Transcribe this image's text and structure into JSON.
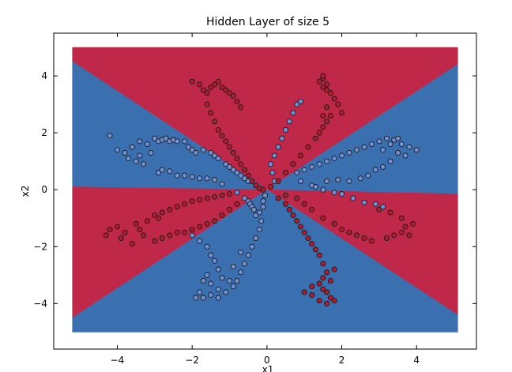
{
  "chart_data": {
    "type": "scatter",
    "title": "Hidden Layer of size 5",
    "xlabel": "x1",
    "ylabel": "x2",
    "xlim": [
      -5.7,
      5.6
    ],
    "ylim": [
      -5.6,
      5.5
    ],
    "xticks": [
      -4,
      -2,
      0,
      2,
      4
    ],
    "xtick_labels": [
      "−4",
      "−2",
      "0",
      "2",
      "4"
    ],
    "yticks": [
      -4,
      -2,
      0,
      2,
      4
    ],
    "ytick_labels": [
      "−4",
      "−2",
      "0",
      "2",
      "4"
    ],
    "grid": false,
    "legend": "none",
    "background_extent": {
      "x": [
        -5.2,
        5.1
      ],
      "y": [
        -5.0,
        5.0
      ]
    },
    "decision_regions": [
      {
        "class": 1,
        "color": "#C0284A",
        "polygon": [
          [
            -5.2,
            5.0
          ],
          [
            5.1,
            5.0
          ],
          [
            5.1,
            4.4
          ],
          [
            0,
            0
          ],
          [
            -5.2,
            4.5
          ]
        ]
      },
      {
        "class": 0,
        "color": "#3A70B0",
        "polygon": [
          [
            -5.2,
            4.5
          ],
          [
            0,
            0
          ],
          [
            -5.2,
            0.1
          ]
        ]
      },
      {
        "class": 0,
        "color": "#3A70B0",
        "polygon": [
          [
            5.1,
            4.4
          ],
          [
            5.1,
            -0.15
          ],
          [
            0,
            0
          ]
        ]
      },
      {
        "class": 1,
        "color": "#C0284A",
        "polygon": [
          [
            -5.2,
            0.1
          ],
          [
            0,
            0
          ],
          [
            -5.2,
            -4.5
          ]
        ]
      },
      {
        "class": 1,
        "color": "#C0284A",
        "polygon": [
          [
            0,
            0
          ],
          [
            5.1,
            -0.15
          ],
          [
            5.1,
            -4.4
          ]
        ]
      },
      {
        "class": 0,
        "color": "#3A70B0",
        "polygon": [
          [
            -5.2,
            -4.5
          ],
          [
            0,
            0
          ],
          [
            5.1,
            -4.4
          ],
          [
            5.1,
            -5.0
          ],
          [
            -5.2,
            -5.0
          ]
        ]
      }
    ],
    "series": [
      {
        "class": 0,
        "color": "#6F8FD6",
        "points": [
          [
            -4.2,
            1.9
          ],
          [
            -4.0,
            1.4
          ],
          [
            -3.8,
            1.3
          ],
          [
            -3.7,
            1.1
          ],
          [
            -3.6,
            1.5
          ],
          [
            -3.5,
            1.0
          ],
          [
            -3.4,
            1.7
          ],
          [
            -3.4,
            1.2
          ],
          [
            -3.3,
            0.9
          ],
          [
            -3.2,
            1.6
          ],
          [
            -3.1,
            1.3
          ],
          [
            -3.0,
            1.8
          ],
          [
            -2.9,
            1.7
          ],
          [
            -2.8,
            1.75
          ],
          [
            -2.7,
            1.8
          ],
          [
            -2.6,
            1.7
          ],
          [
            -2.5,
            1.75
          ],
          [
            -2.4,
            1.7
          ],
          [
            -2.2,
            1.7
          ],
          [
            -2.1,
            1.5
          ],
          [
            -2.0,
            1.4
          ],
          [
            -1.9,
            1.3
          ],
          [
            -1.7,
            1.4
          ],
          [
            -1.5,
            1.3
          ],
          [
            -1.4,
            1.2
          ],
          [
            -1.3,
            1.1
          ],
          [
            -1.1,
            0.9
          ],
          [
            -1.0,
            0.8
          ],
          [
            -0.9,
            0.7
          ],
          [
            -0.8,
            0.6
          ],
          [
            -0.7,
            0.5
          ],
          [
            -0.6,
            0.4
          ],
          [
            -0.5,
            0.3
          ],
          [
            -2.9,
            0.6
          ],
          [
            -2.8,
            0.7
          ],
          [
            -2.6,
            0.65
          ],
          [
            -2.4,
            0.5
          ],
          [
            -2.2,
            0.5
          ],
          [
            -2.0,
            0.45
          ],
          [
            -1.8,
            0.4
          ],
          [
            -1.6,
            0.4
          ],
          [
            -1.4,
            0.35
          ],
          [
            -1.2,
            0.2
          ],
          [
            -0.8,
            -0.1
          ],
          [
            -0.6,
            -0.3
          ],
          [
            -0.5,
            -0.4
          ],
          [
            -0.45,
            -0.5
          ],
          [
            -0.4,
            -0.6
          ],
          [
            -0.35,
            -0.7
          ],
          [
            -0.3,
            -0.9
          ],
          [
            -0.2,
            -0.8
          ],
          [
            -0.1,
            -0.6
          ],
          [
            -0.1,
            -0.4
          ],
          [
            -0.05,
            -0.2
          ],
          [
            -2.0,
            -1.6
          ],
          [
            -1.8,
            -1.8
          ],
          [
            -1.6,
            -2.0
          ],
          [
            -1.5,
            -2.3
          ],
          [
            -1.4,
            -2.5
          ],
          [
            -1.3,
            -2.8
          ],
          [
            -1.2,
            -3.1
          ],
          [
            -1.3,
            -3.5
          ],
          [
            -1.5,
            -3.3
          ],
          [
            -1.6,
            -3.0
          ],
          [
            -1.7,
            -3.2
          ],
          [
            -1.8,
            -3.6
          ],
          [
            -1.9,
            -3.8
          ],
          [
            -1.7,
            -3.8
          ],
          [
            -1.5,
            -3.7
          ],
          [
            -1.3,
            -3.8
          ],
          [
            -1.1,
            -3.6
          ],
          [
            -0.9,
            -3.4
          ],
          [
            -0.8,
            -3.2
          ],
          [
            -0.7,
            -2.9
          ],
          [
            -0.6,
            -2.6
          ],
          [
            -0.5,
            -2.3
          ],
          [
            -0.4,
            -2.0
          ],
          [
            -0.3,
            -1.7
          ],
          [
            -0.2,
            -1.4
          ],
          [
            -0.15,
            -1.1
          ],
          [
            -1.0,
            -3.2
          ],
          [
            -0.9,
            -2.7
          ],
          [
            -0.7,
            -2.2
          ],
          [
            0.2,
            1.2
          ],
          [
            0.3,
            1.5
          ],
          [
            0.4,
            1.8
          ],
          [
            0.5,
            2.1
          ],
          [
            0.6,
            2.4
          ],
          [
            0.7,
            2.7
          ],
          [
            0.8,
            3.0
          ],
          [
            0.9,
            3.1
          ],
          [
            0.1,
            0.9
          ],
          [
            0.15,
            0.6
          ],
          [
            0.2,
            0.3
          ],
          [
            0.9,
            0.3
          ],
          [
            1.2,
            0.15
          ],
          [
            1.5,
            0.0
          ],
          [
            1.8,
            -0.1
          ],
          [
            2.0,
            -0.15
          ],
          [
            2.3,
            -0.3
          ],
          [
            2.6,
            -0.45
          ],
          [
            2.9,
            -0.5
          ],
          [
            3.1,
            -0.6
          ],
          [
            0.8,
            0.6
          ],
          [
            1.0,
            0.7
          ],
          [
            1.2,
            0.8
          ],
          [
            1.4,
            0.9
          ],
          [
            1.6,
            1.0
          ],
          [
            1.8,
            1.1
          ],
          [
            2.0,
            1.2
          ],
          [
            2.2,
            1.3
          ],
          [
            2.4,
            1.4
          ],
          [
            2.6,
            1.5
          ],
          [
            2.8,
            1.6
          ],
          [
            3.0,
            1.7
          ],
          [
            3.2,
            1.8
          ],
          [
            3.4,
            1.75
          ],
          [
            3.6,
            1.6
          ],
          [
            3.8,
            1.5
          ],
          [
            4.0,
            1.4
          ],
          [
            3.5,
            1.8
          ],
          [
            3.3,
            1.6
          ],
          [
            3.1,
            1.4
          ],
          [
            3.3,
            1.0
          ],
          [
            3.1,
            0.8
          ],
          [
            2.9,
            0.7
          ],
          [
            3.5,
            1.3
          ],
          [
            3.7,
            1.2
          ],
          [
            2.7,
            0.5
          ],
          [
            2.5,
            0.4
          ],
          [
            2.2,
            0.3
          ],
          [
            1.9,
            0.35
          ],
          [
            1.6,
            0.3
          ],
          [
            1.3,
            0.1
          ]
        ]
      },
      {
        "class": 1,
        "color": "#B01C2E",
        "points": [
          [
            -2.0,
            3.8
          ],
          [
            -1.8,
            3.7
          ],
          [
            -1.7,
            3.5
          ],
          [
            -1.6,
            3.4
          ],
          [
            -1.5,
            3.6
          ],
          [
            -1.4,
            3.7
          ],
          [
            -1.3,
            3.8
          ],
          [
            -1.2,
            3.6
          ],
          [
            -1.1,
            3.5
          ],
          [
            -1.0,
            3.4
          ],
          [
            -0.9,
            3.3
          ],
          [
            -0.8,
            3.1
          ],
          [
            -0.7,
            2.9
          ],
          [
            -1.6,
            3.0
          ],
          [
            -1.5,
            2.7
          ],
          [
            -1.4,
            2.4
          ],
          [
            -1.3,
            2.1
          ],
          [
            -1.2,
            1.9
          ],
          [
            -1.1,
            1.7
          ],
          [
            -1.0,
            1.5
          ],
          [
            -0.9,
            1.3
          ],
          [
            -0.8,
            1.1
          ],
          [
            -0.7,
            0.9
          ],
          [
            -0.6,
            0.7
          ],
          [
            -0.5,
            0.5
          ],
          [
            -0.4,
            0.3
          ],
          [
            -0.3,
            0.15
          ],
          [
            -0.2,
            0.05
          ],
          [
            -0.1,
            0.0
          ],
          [
            -4.3,
            -1.6
          ],
          [
            -4.2,
            -1.4
          ],
          [
            -4.0,
            -1.3
          ],
          [
            -3.9,
            -1.7
          ],
          [
            -3.8,
            -1.5
          ],
          [
            -3.6,
            -1.9
          ],
          [
            -3.5,
            -1.2
          ],
          [
            -3.4,
            -1.4
          ],
          [
            -3.3,
            -1.6
          ],
          [
            -3.2,
            -1.1
          ],
          [
            -3.0,
            -0.9
          ],
          [
            -2.9,
            -1.0
          ],
          [
            -2.8,
            -0.8
          ],
          [
            -2.6,
            -0.7
          ],
          [
            -2.4,
            -0.6
          ],
          [
            -2.2,
            -0.5
          ],
          [
            -2.0,
            -0.4
          ],
          [
            -1.8,
            -0.35
          ],
          [
            -1.6,
            -0.3
          ],
          [
            -1.4,
            -0.25
          ],
          [
            -1.2,
            -0.2
          ],
          [
            -1.0,
            -0.15
          ],
          [
            -3.0,
            -1.8
          ],
          [
            -2.8,
            -1.7
          ],
          [
            -2.6,
            -1.6
          ],
          [
            -2.4,
            -1.5
          ],
          [
            -2.2,
            -1.5
          ],
          [
            -2.0,
            -1.4
          ],
          [
            -1.8,
            -1.3
          ],
          [
            -1.6,
            -1.2
          ],
          [
            -1.4,
            -1.1
          ],
          [
            -1.2,
            -0.9
          ],
          [
            -1.0,
            -0.7
          ],
          [
            -0.8,
            -0.5
          ],
          [
            1.4,
            3.8
          ],
          [
            1.5,
            3.6
          ],
          [
            1.6,
            3.5
          ],
          [
            1.5,
            3.9
          ],
          [
            1.5,
            4.0
          ],
          [
            1.6,
            3.7
          ],
          [
            1.7,
            3.4
          ],
          [
            1.8,
            3.2
          ],
          [
            1.5,
            2.6
          ],
          [
            1.6,
            2.4
          ],
          [
            1.5,
            2.2
          ],
          [
            1.4,
            2.0
          ],
          [
            1.3,
            1.8
          ],
          [
            1.1,
            1.5
          ],
          [
            0.9,
            1.2
          ],
          [
            0.7,
            0.9
          ],
          [
            0.5,
            0.6
          ],
          [
            0.3,
            0.3
          ],
          [
            0.1,
            0.1
          ],
          [
            1.9,
            3.0
          ],
          [
            2.0,
            2.7
          ],
          [
            1.6,
            2.9
          ],
          [
            1.7,
            2.6
          ],
          [
            0.3,
            -0.3
          ],
          [
            0.5,
            -0.5
          ],
          [
            0.6,
            -0.7
          ],
          [
            0.7,
            -0.9
          ],
          [
            0.8,
            -1.1
          ],
          [
            0.9,
            -1.3
          ],
          [
            1.0,
            -1.5
          ],
          [
            1.1,
            -1.7
          ],
          [
            1.2,
            -1.9
          ],
          [
            1.3,
            -2.1
          ],
          [
            1.4,
            -2.3
          ],
          [
            1.5,
            -2.6
          ],
          [
            1.6,
            -2.9
          ],
          [
            1.5,
            -3.1
          ],
          [
            1.4,
            -3.3
          ],
          [
            1.5,
            -3.5
          ],
          [
            1.6,
            -3.6
          ],
          [
            1.7,
            -3.8
          ],
          [
            1.8,
            -3.9
          ],
          [
            1.6,
            -4.0
          ],
          [
            1.4,
            -3.9
          ],
          [
            1.2,
            -3.7
          ],
          [
            1.0,
            -3.6
          ],
          [
            1.2,
            -3.4
          ],
          [
            1.7,
            -3.2
          ],
          [
            1.8,
            -2.8
          ],
          [
            1.5,
            -1.0
          ],
          [
            1.8,
            -1.2
          ],
          [
            2.0,
            -1.4
          ],
          [
            2.2,
            -1.5
          ],
          [
            2.4,
            -1.6
          ],
          [
            2.6,
            -1.7
          ],
          [
            2.8,
            -1.8
          ],
          [
            3.2,
            -1.7
          ],
          [
            3.4,
            -1.6
          ],
          [
            3.6,
            -1.5
          ],
          [
            3.7,
            -1.3
          ],
          [
            3.8,
            -1.6
          ],
          [
            3.9,
            -1.2
          ],
          [
            3.6,
            -1.0
          ],
          [
            3.3,
            -0.8
          ],
          [
            3.0,
            -0.7
          ],
          [
            0.5,
            -0.2
          ],
          [
            0.8,
            -0.3
          ],
          [
            1.0,
            -0.5
          ],
          [
            1.2,
            -0.7
          ]
        ]
      }
    ]
  }
}
